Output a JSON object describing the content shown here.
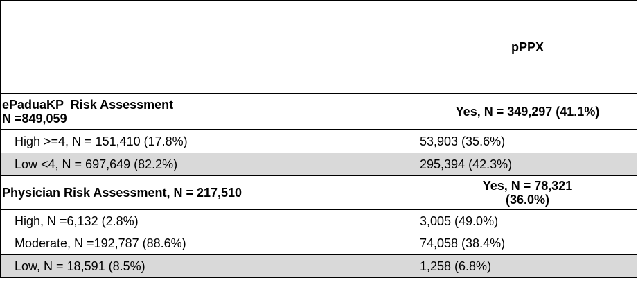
{
  "header": {
    "col1": "",
    "col2": "pPPX"
  },
  "sections": [
    {
      "title_line1": "ePaduaKP  Risk Assessment",
      "title_line2": "N =849,059",
      "summary": "Yes, N = 349,297 (41.1%)",
      "rows": [
        {
          "label": "High >=4, N = 151,410 (17.8%)",
          "value": "53,903 (35.6%)",
          "shaded": false
        },
        {
          "label": "Low <4, N = 697,649 (82.2%)",
          "value": "295,394 (42.3%)",
          "shaded": true
        }
      ]
    },
    {
      "title_line1": "Physician Risk Assessment, N = 217,510",
      "summary_line1": "Yes, N = 78,321",
      "summary_line2": "(36.0%)",
      "rows": [
        {
          "label": "High, N =6,132 (2.8%)",
          "value": "3,005 (49.0%)",
          "shaded": false
        },
        {
          "label": "Moderate, N =192,787 (88.6%)",
          "value": "74,058 (38.4%)",
          "shaded": false
        },
        {
          "label": "Low, N = 18,591 (8.5%)",
          "value": "1,258 (6.8%)",
          "shaded": true
        }
      ]
    }
  ],
  "colors": {
    "shade": "#d9d9d9",
    "border": "#000000"
  }
}
